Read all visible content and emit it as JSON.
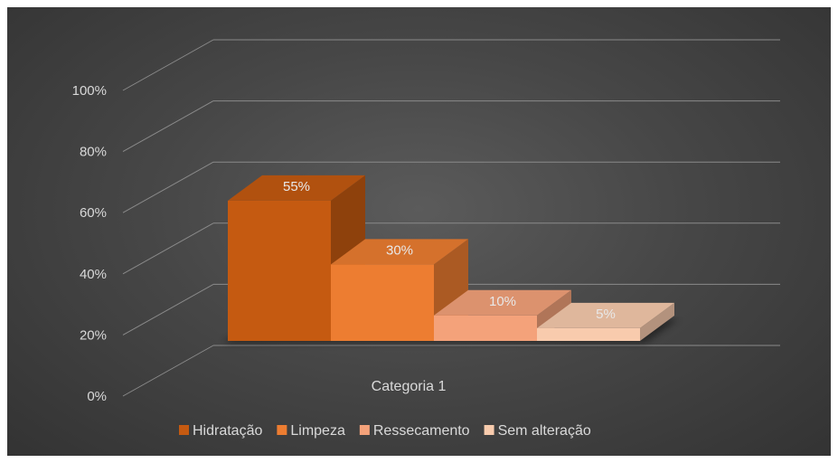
{
  "chart_data": {
    "type": "bar",
    "categories": [
      "Categoria 1"
    ],
    "series": [
      {
        "name": "Hidratação",
        "values": [
          55
        ],
        "label": "55%",
        "color": "#c55a11"
      },
      {
        "name": "Limpeza",
        "values": [
          30
        ],
        "label": "30%",
        "color": "#ed7d31"
      },
      {
        "name": "Ressecamento",
        "values": [
          10
        ],
        "label": "10%",
        "color": "#f4a27a"
      },
      {
        "name": "Sem alteração",
        "values": [
          5
        ],
        "label": "5%",
        "color": "#f8cbad"
      }
    ],
    "yticks": [
      "0%",
      "20%",
      "40%",
      "60%",
      "80%",
      "100%"
    ],
    "ylim": [
      0,
      100
    ],
    "grid": true,
    "legend": "bottom",
    "style": "3d-bar"
  }
}
